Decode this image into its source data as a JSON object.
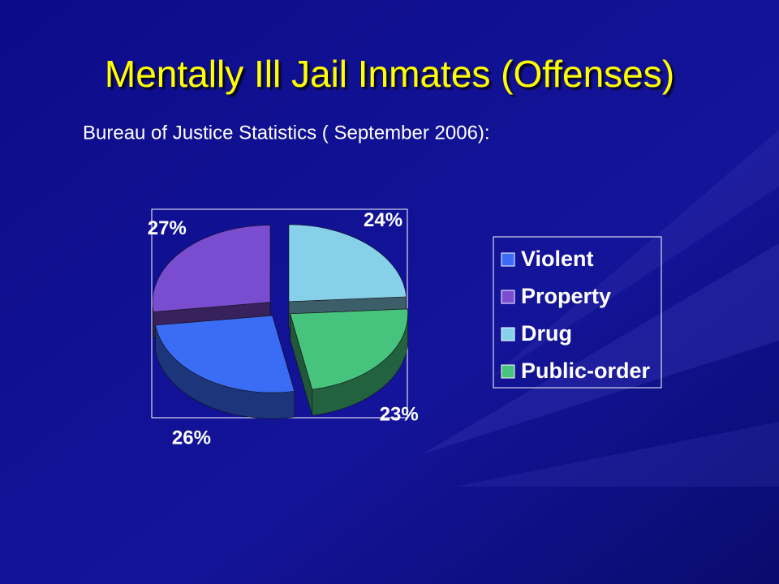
{
  "chart_data": {
    "type": "pie3d",
    "title": "Mentally Ill Jail Inmates (Offenses)",
    "subtitle": "Bureau of Justice Statistics ( September 2006):",
    "categories": [
      "Violent",
      "Property",
      "Drug",
      "Public-order"
    ],
    "values": [
      26,
      27,
      24,
      23
    ],
    "value_labels": [
      "26%",
      "27%",
      "24%",
      "23%"
    ],
    "colors": [
      "#3a6cf6",
      "#7a4ccf",
      "#86d0ea",
      "#46c47e"
    ],
    "legend": "right"
  }
}
